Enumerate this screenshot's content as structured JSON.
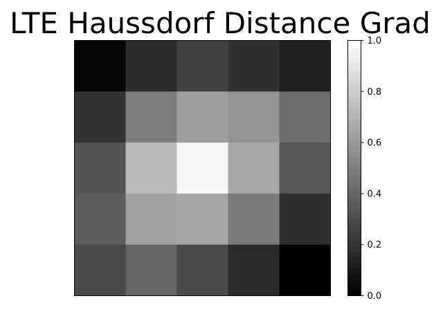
{
  "chart_data": {
    "type": "heatmap",
    "title": "LTE Haussdorf Distance Grad",
    "xlabel": "",
    "ylabel": "",
    "rows": 5,
    "cols": 5,
    "values": [
      [
        0.02,
        0.17,
        0.25,
        0.19,
        0.13
      ],
      [
        0.2,
        0.49,
        0.62,
        0.58,
        0.43
      ],
      [
        0.33,
        0.73,
        0.97,
        0.66,
        0.35
      ],
      [
        0.36,
        0.63,
        0.65,
        0.48,
        0.19
      ],
      [
        0.29,
        0.4,
        0.29,
        0.17,
        0.0
      ]
    ],
    "colormap": "gray",
    "colorbar": {
      "range": [
        0.0,
        1.0
      ],
      "ticks": [
        0.0,
        0.2,
        0.4,
        0.6,
        0.8,
        1.0
      ],
      "tick_labels": [
        "0.0",
        "0.2",
        "0.4",
        "0.6",
        "0.8",
        "1.0"
      ],
      "position": "right"
    },
    "axes_ticks_visible": false,
    "grid": false
  }
}
